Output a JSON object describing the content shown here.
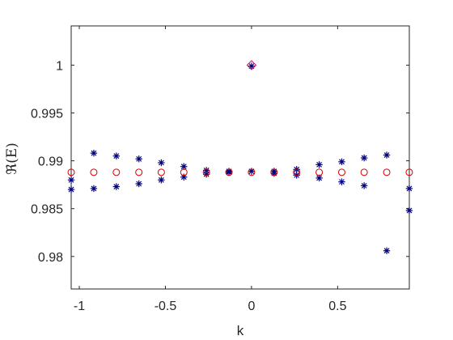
{
  "chart_data": {
    "type": "scatter",
    "title": "",
    "xlabel": "k",
    "ylabel": "ℜ(E)",
    "xlim": [
      -1.0472,
      0.9163
    ],
    "ylim": [
      0.9766,
      1.0041
    ],
    "xticks": [
      -1,
      -0.5,
      0,
      0.5
    ],
    "xtick_labels": [
      "-1",
      "-0.5",
      "0",
      "0.5"
    ],
    "yticks": [
      0.98,
      0.985,
      0.99,
      0.995,
      1
    ],
    "ytick_labels": [
      "0.98",
      "0.985",
      "0.99",
      "0.995",
      "1"
    ],
    "grid": false,
    "legend": "none",
    "series": [
      {
        "marker": "asterisk",
        "color": "#00007f",
        "points": [
          [
            -1.047,
            0.988
          ],
          [
            -1.047,
            0.987
          ],
          [
            -0.916,
            0.9908
          ],
          [
            -0.916,
            0.9871
          ],
          [
            -0.785,
            0.9905
          ],
          [
            -0.785,
            0.9873
          ],
          [
            -0.654,
            0.9902
          ],
          [
            -0.654,
            0.9876
          ],
          [
            -0.524,
            0.9898
          ],
          [
            -0.524,
            0.988
          ],
          [
            -0.393,
            0.9894
          ],
          [
            -0.393,
            0.9883
          ],
          [
            -0.262,
            0.989
          ],
          [
            -0.262,
            0.9886
          ],
          [
            -0.131,
            0.9889
          ],
          [
            -0.131,
            0.9888
          ],
          [
            0.0,
            0.9889
          ],
          [
            0.0,
            0.9999
          ],
          [
            0.131,
            0.9889
          ],
          [
            0.131,
            0.9887
          ],
          [
            0.262,
            0.9891
          ],
          [
            0.262,
            0.9885
          ],
          [
            0.393,
            0.9896
          ],
          [
            0.393,
            0.9882
          ],
          [
            0.524,
            0.9899
          ],
          [
            0.524,
            0.9878
          ],
          [
            0.654,
            0.9903
          ],
          [
            0.654,
            0.9874
          ],
          [
            0.785,
            0.9906
          ],
          [
            0.785,
            0.9806
          ],
          [
            0.916,
            0.9871
          ],
          [
            0.916,
            0.9848
          ]
        ]
      },
      {
        "marker": "circle",
        "color": "#d40000",
        "points": [
          [
            -1.047,
            0.9888
          ],
          [
            -0.916,
            0.9888
          ],
          [
            -0.785,
            0.9888
          ],
          [
            -0.654,
            0.9888
          ],
          [
            -0.524,
            0.9888
          ],
          [
            -0.393,
            0.9888
          ],
          [
            -0.262,
            0.9888
          ],
          [
            -0.131,
            0.9888
          ],
          [
            0.0,
            0.9888
          ],
          [
            0.131,
            0.9888
          ],
          [
            0.262,
            0.9888
          ],
          [
            0.393,
            0.9888
          ],
          [
            0.524,
            0.9888
          ],
          [
            0.654,
            0.9888
          ],
          [
            0.785,
            0.9888
          ],
          [
            0.916,
            0.9888
          ]
        ]
      },
      {
        "marker": "diamond",
        "color": "#d4006a",
        "points": [
          [
            0.0,
            1.0
          ]
        ]
      }
    ]
  }
}
